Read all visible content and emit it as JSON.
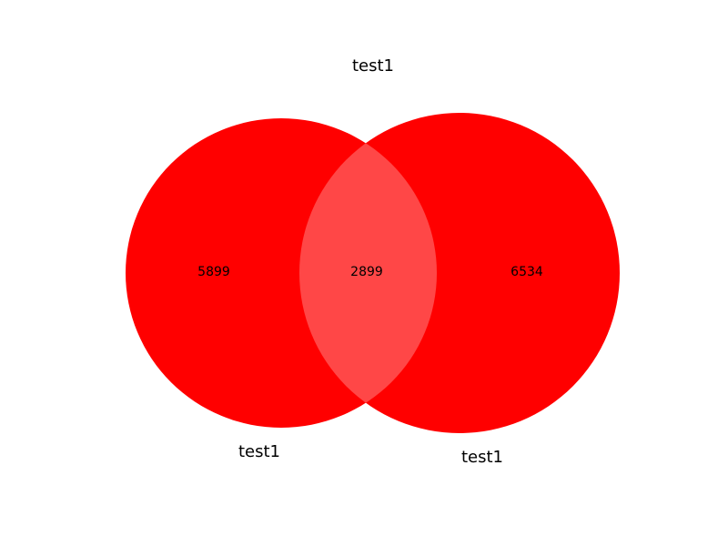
{
  "diagram": {
    "type": "venn2",
    "title": "test1",
    "sets": [
      {
        "label": "test1",
        "only_count": "5899"
      },
      {
        "label": "test1",
        "only_count": "6534"
      }
    ],
    "intersection_count": "2899",
    "colors": {
      "set_fill": "#ff0000",
      "intersection_fill": "#ff4747",
      "text": "#000000",
      "background": "#ffffff"
    }
  }
}
